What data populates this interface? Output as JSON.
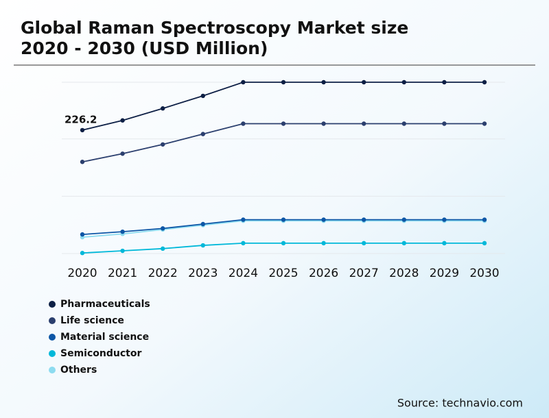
{
  "chart_data": {
    "type": "line",
    "title": [
      "Global Raman Spectroscopy Market size",
      "2020 - 2030 (USD Million)"
    ],
    "x": [
      2020,
      2021,
      2022,
      2023,
      2024,
      2025,
      2026,
      2027,
      2028,
      2029,
      2030
    ],
    "series": [
      {
        "name": "Pharmaceuticals",
        "color": "#0d1f45",
        "values": [
          226.2,
          244,
          266,
          289,
          314,
          314,
          314,
          314,
          314,
          314,
          314
        ]
      },
      {
        "name": "Life science",
        "color": "#2b3f6e",
        "values": [
          168,
          183,
          200,
          219,
          238,
          238,
          238,
          238,
          238,
          238,
          238
        ]
      },
      {
        "name": "Material science",
        "color": "#0d56a6",
        "values": [
          35,
          40,
          46,
          54,
          62,
          62,
          62,
          62,
          62,
          62,
          62
        ]
      },
      {
        "name": "Semiconductor",
        "color": "#00b8d9",
        "values": [
          1,
          5,
          9,
          15,
          19,
          19,
          19,
          19,
          19,
          19,
          19
        ]
      },
      {
        "name": "Others",
        "color": "#8ddcf0",
        "values": [
          30,
          36,
          44,
          52,
          60,
          60,
          60,
          60,
          60,
          60,
          60
        ]
      }
    ],
    "ylim": [
      0,
      314
    ],
    "yticks": [
      0,
      105,
      210,
      314
    ],
    "grid": true,
    "source": "Source: technavio.com"
  }
}
